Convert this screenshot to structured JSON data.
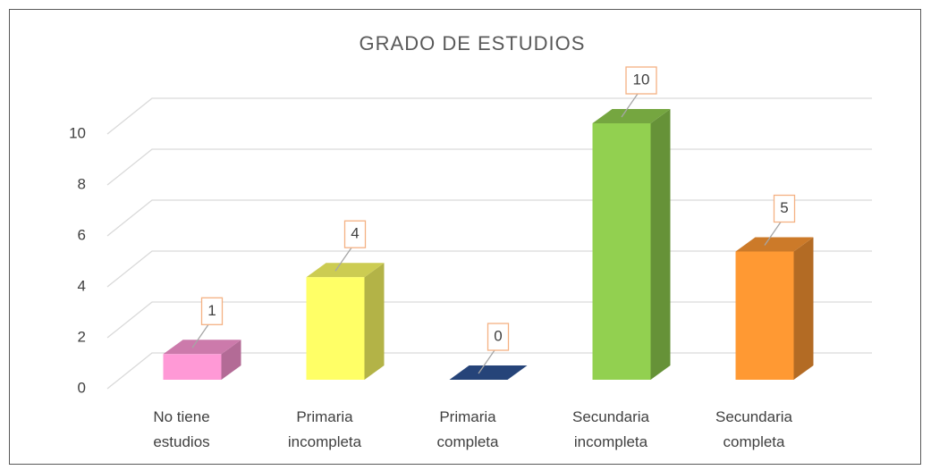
{
  "chart_data": {
    "type": "bar3d",
    "title": "GRADO DE ESTUDIOS",
    "categories": [
      "No tiene estudios",
      "Primaria incompleta",
      "Primaria completa",
      "Secundaria incompleta",
      "Secundaria completa"
    ],
    "values": [
      1,
      4,
      0,
      10,
      5
    ],
    "colors": [
      "#ff99d6",
      "#ffff66",
      "#2f5597",
      "#92d050",
      "#ff9933"
    ],
    "ylim": [
      0,
      10
    ],
    "yticks": [
      0,
      2,
      4,
      6,
      8,
      10
    ],
    "grid": true
  }
}
